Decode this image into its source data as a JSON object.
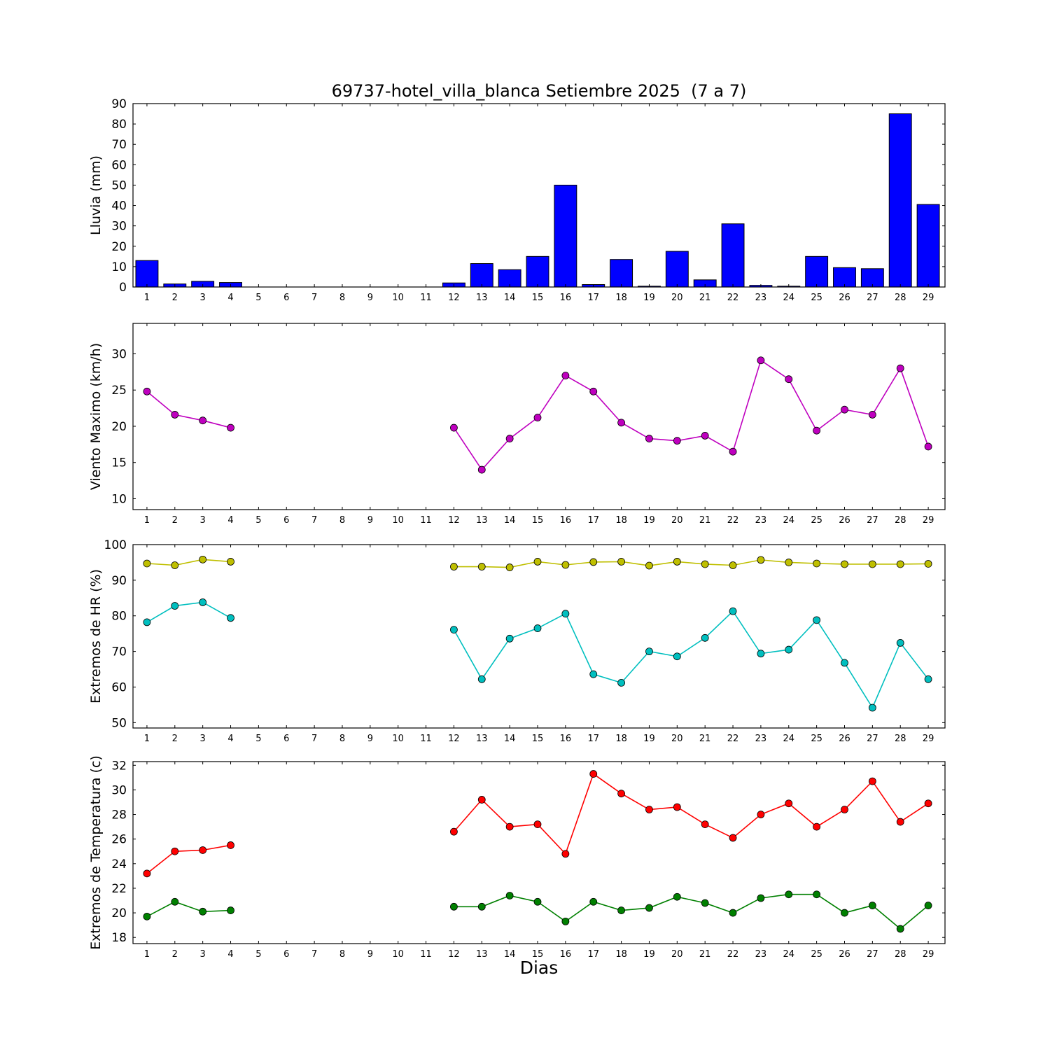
{
  "figure": {
    "title": "69737-hotel_villa_blanca Setiembre 2025  (7 a 7)",
    "xlabel": "Dias",
    "background": "#ffffff"
  },
  "axes": {
    "xlim": [
      0.5,
      29.6
    ],
    "xticks": [
      1,
      2,
      3,
      4,
      5,
      6,
      7,
      8,
      9,
      10,
      11,
      12,
      13,
      14,
      15,
      16,
      17,
      18,
      19,
      20,
      21,
      22,
      23,
      24,
      25,
      26,
      27,
      28,
      29
    ]
  },
  "chart_data": [
    {
      "type": "bar",
      "name": "lluvia",
      "ylabel": "Lluvia (mm)",
      "color": "#0000ff",
      "ylim": [
        0,
        90
      ],
      "yticks": [
        0,
        10,
        20,
        30,
        40,
        50,
        60,
        70,
        80,
        90
      ],
      "x": [
        1,
        2,
        3,
        4,
        5,
        6,
        7,
        8,
        9,
        10,
        11,
        12,
        13,
        14,
        15,
        16,
        17,
        18,
        19,
        20,
        21,
        22,
        23,
        24,
        25,
        26,
        27,
        28,
        29
      ],
      "values": [
        13,
        1.5,
        2.8,
        2.2,
        0,
        0,
        0,
        0,
        0,
        0,
        0,
        2,
        11.5,
        8.5,
        15,
        50,
        1.2,
        13.5,
        0.4,
        17.5,
        3.5,
        31,
        0.8,
        0.4,
        15,
        9.5,
        9,
        85,
        40.5
      ]
    },
    {
      "type": "line",
      "name": "viento",
      "ylabel": "Viento Maximo (km/h)",
      "color": "#bf00bf",
      "ylim": [
        8.5,
        34.2
      ],
      "yticks": [
        10,
        15,
        20,
        25,
        30
      ],
      "x": [
        1,
        2,
        3,
        4,
        12,
        13,
        14,
        15,
        16,
        17,
        18,
        19,
        20,
        21,
        22,
        23,
        24,
        25,
        26,
        27,
        28,
        29
      ],
      "values": [
        24.8,
        21.6,
        20.8,
        19.8,
        19.8,
        14.0,
        18.3,
        21.2,
        27.0,
        24.8,
        20.5,
        18.3,
        18.0,
        18.7,
        16.5,
        29.1,
        26.5,
        19.4,
        22.3,
        21.6,
        28.0,
        17.2
      ]
    },
    {
      "type": "line",
      "name": "hr",
      "ylabel": "Extremos de HR (%)",
      "ylim": [
        48.5,
        100
      ],
      "yticks": [
        50,
        60,
        70,
        80,
        90,
        100
      ],
      "x": [
        1,
        2,
        3,
        4,
        12,
        13,
        14,
        15,
        16,
        17,
        18,
        19,
        20,
        21,
        22,
        23,
        24,
        25,
        26,
        27,
        28,
        29
      ],
      "series": [
        {
          "name": "hr_max",
          "color": "#bfbf00",
          "values": [
            94.7,
            94.2,
            95.8,
            95.2,
            93.8,
            93.8,
            93.6,
            95.2,
            94.3,
            95.1,
            95.2,
            94.1,
            95.2,
            94.5,
            94.2,
            95.7,
            95.0,
            94.7,
            94.5,
            94.5,
            94.5,
            94.6
          ]
        },
        {
          "name": "hr_min",
          "color": "#00bfbf",
          "values": [
            78.2,
            82.8,
            83.8,
            79.4,
            76.1,
            62.2,
            73.6,
            76.5,
            80.6,
            63.6,
            61.2,
            70.0,
            68.6,
            73.8,
            81.3,
            69.4,
            70.5,
            78.8,
            66.8,
            54.2,
            72.4,
            62.2
          ]
        }
      ]
    },
    {
      "type": "line",
      "name": "temperatura",
      "ylabel": "Extremos de Temperatura (c)",
      "ylim": [
        17.5,
        32.3
      ],
      "yticks": [
        18,
        20,
        22,
        24,
        26,
        28,
        30,
        32
      ],
      "x": [
        1,
        2,
        3,
        4,
        12,
        13,
        14,
        15,
        16,
        17,
        18,
        19,
        20,
        21,
        22,
        23,
        24,
        25,
        26,
        27,
        28,
        29
      ],
      "series": [
        {
          "name": "temp_max",
          "color": "#ff0000",
          "values": [
            23.2,
            25.0,
            25.1,
            25.5,
            26.6,
            29.2,
            27.0,
            27.2,
            24.8,
            31.3,
            29.7,
            28.4,
            28.6,
            27.2,
            26.1,
            28.0,
            28.9,
            27.0,
            28.4,
            30.7,
            27.4,
            28.9
          ]
        },
        {
          "name": "temp_min",
          "color": "#008000",
          "values": [
            19.7,
            20.9,
            20.1,
            20.2,
            20.5,
            20.5,
            21.4,
            20.9,
            19.3,
            20.9,
            20.2,
            20.4,
            21.3,
            20.8,
            20.0,
            21.2,
            21.5,
            21.5,
            20.0,
            20.6,
            18.7,
            20.6
          ]
        }
      ]
    }
  ]
}
